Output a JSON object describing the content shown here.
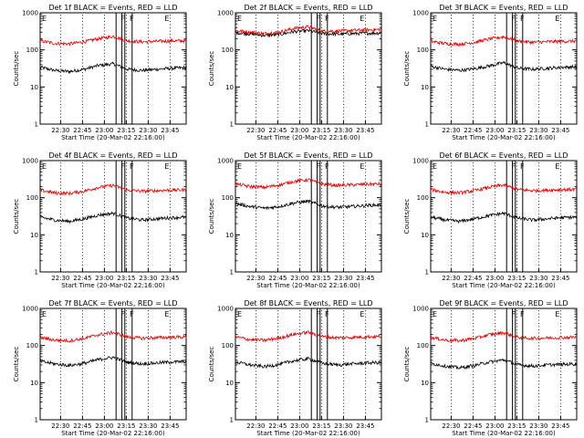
{
  "figure": {
    "panel_x_ticks": [
      "22:30",
      "22:45",
      "23:00",
      "23:15",
      "23:30",
      "23:45"
    ],
    "panel_y_ticks": [
      "1",
      "10",
      "100",
      "1000"
    ]
  },
  "chart_data": [
    {
      "type": "line",
      "title": "Det 1f BLACK = Events, RED = LLD",
      "xlabel": "Start Time (20-Mar-02 22:16:00)",
      "ylabel": "Counts/sec",
      "y_scale": "log",
      "ylim": [
        1,
        1000
      ],
      "xlim": [
        "22:16",
        "23:56"
      ],
      "flags": [
        {
          "label": "E",
          "time": "22:16"
        },
        {
          "label": "F",
          "time": "23:10"
        },
        {
          "label": "F",
          "time": "23:16"
        },
        {
          "label": "E",
          "time": "23:40"
        }
      ],
      "vertical_lines": [
        "23:08",
        "23:12",
        "23:14",
        "23:19"
      ],
      "x": [
        "22:16",
        "22:26",
        "22:36",
        "22:46",
        "22:56",
        "23:06",
        "23:16",
        "23:26",
        "23:36",
        "23:46",
        "23:56"
      ],
      "series": [
        {
          "color": "#000000",
          "values": [
            34,
            28,
            26,
            30,
            38,
            42,
            30,
            28,
            30,
            32,
            33
          ]
        },
        {
          "color": "#e00000",
          "values": [
            175,
            150,
            145,
            165,
            200,
            230,
            175,
            165,
            170,
            175,
            175
          ]
        }
      ]
    },
    {
      "type": "line",
      "title": "Det 2f BLACK = Events, RED = LLD",
      "xlabel": "Start Time (20-Mar-02 22:16:00)",
      "ylabel": "Counts/sec",
      "y_scale": "log",
      "ylim": [
        1,
        1000
      ],
      "xlim": [
        "22:16",
        "23:56"
      ],
      "flags": [
        {
          "label": "E",
          "time": "22:16"
        },
        {
          "label": "F",
          "time": "23:10"
        },
        {
          "label": "F",
          "time": "23:16"
        },
        {
          "label": "E",
          "time": "23:40"
        }
      ],
      "vertical_lines": [
        "23:08",
        "23:12",
        "23:14",
        "23:19"
      ],
      "x": [
        "22:16",
        "22:26",
        "22:36",
        "22:46",
        "22:56",
        "23:06",
        "23:16",
        "23:26",
        "23:36",
        "23:46",
        "23:56"
      ],
      "series": [
        {
          "color": "#000000",
          "values": [
            290,
            270,
            245,
            260,
            310,
            330,
            275,
            265,
            275,
            280,
            285
          ]
        },
        {
          "color": "#e00000",
          "values": [
            330,
            300,
            275,
            300,
            380,
            420,
            320,
            320,
            335,
            345,
            355
          ]
        }
      ]
    },
    {
      "type": "line",
      "title": "Det 3f BLACK = Events, RED = LLD",
      "xlabel": "Start Time (20-Mar-02 22:16:00)",
      "ylabel": "Counts/sec",
      "y_scale": "log",
      "ylim": [
        1,
        1000
      ],
      "xlim": [
        "22:16",
        "23:56"
      ],
      "flags": [
        {
          "label": "E",
          "time": "22:16"
        },
        {
          "label": "F",
          "time": "23:10"
        },
        {
          "label": "F",
          "time": "23:16"
        },
        {
          "label": "E",
          "time": "23:40"
        }
      ],
      "vertical_lines": [
        "23:08",
        "23:12",
        "23:14",
        "23:19"
      ],
      "x": [
        "22:16",
        "22:26",
        "22:36",
        "22:46",
        "22:56",
        "23:06",
        "23:16",
        "23:26",
        "23:36",
        "23:46",
        "23:56"
      ],
      "series": [
        {
          "color": "#000000",
          "values": [
            36,
            30,
            28,
            31,
            37,
            45,
            32,
            30,
            32,
            34,
            35
          ]
        },
        {
          "color": "#e00000",
          "values": [
            170,
            148,
            142,
            160,
            195,
            225,
            172,
            160,
            165,
            170,
            172
          ]
        }
      ]
    },
    {
      "type": "line",
      "title": "Det 4f BLACK = Events, RED = LLD",
      "xlabel": "Start Time (20-Mar-02 22:16:00)",
      "ylabel": "Counts/sec",
      "y_scale": "log",
      "ylim": [
        1,
        1000
      ],
      "xlim": [
        "22:16",
        "23:56"
      ],
      "flags": [
        {
          "label": "E",
          "time": "22:16"
        },
        {
          "label": "F",
          "time": "23:10"
        },
        {
          "label": "F",
          "time": "23:16"
        },
        {
          "label": "E",
          "time": "23:40"
        }
      ],
      "vertical_lines": [
        "23:08",
        "23:12",
        "23:14",
        "23:19"
      ],
      "x": [
        "22:16",
        "22:26",
        "22:36",
        "22:46",
        "22:56",
        "23:06",
        "23:16",
        "23:26",
        "23:36",
        "23:46",
        "23:56"
      ],
      "series": [
        {
          "color": "#000000",
          "values": [
            30,
            25,
            23,
            27,
            34,
            38,
            28,
            25,
            27,
            29,
            30
          ]
        },
        {
          "color": "#e00000",
          "values": [
            160,
            135,
            130,
            150,
            190,
            215,
            160,
            150,
            155,
            160,
            162
          ]
        }
      ]
    },
    {
      "type": "line",
      "title": "Det 5f BLACK = Events, RED = LLD",
      "xlabel": "Start Time (20-Mar-02 22:16:00)",
      "ylabel": "Counts/sec",
      "y_scale": "log",
      "ylim": [
        1,
        1000
      ],
      "xlim": [
        "22:16",
        "23:56"
      ],
      "flags": [
        {
          "label": "E",
          "time": "22:16"
        },
        {
          "label": "F",
          "time": "23:10"
        },
        {
          "label": "F",
          "time": "23:16"
        },
        {
          "label": "E",
          "time": "23:40"
        }
      ],
      "vertical_lines": [
        "23:08",
        "23:12",
        "23:14",
        "23:19"
      ],
      "x": [
        "22:16",
        "22:26",
        "22:36",
        "22:46",
        "22:56",
        "23:06",
        "23:16",
        "23:26",
        "23:36",
        "23:46",
        "23:56"
      ],
      "series": [
        {
          "color": "#000000",
          "values": [
            70,
            58,
            52,
            58,
            72,
            80,
            60,
            55,
            58,
            62,
            64
          ]
        },
        {
          "color": "#e00000",
          "values": [
            235,
            200,
            190,
            220,
            275,
            305,
            230,
            215,
            222,
            230,
            235
          ]
        }
      ]
    },
    {
      "type": "line",
      "title": "Det 6f BLACK = Events, RED = LLD",
      "xlabel": "Start Time (20-Mar-02 22:16:00)",
      "ylabel": "Counts/sec",
      "y_scale": "log",
      "ylim": [
        1,
        1000
      ],
      "xlim": [
        "22:16",
        "23:56"
      ],
      "flags": [
        {
          "label": "E",
          "time": "22:16"
        },
        {
          "label": "F",
          "time": "23:10"
        },
        {
          "label": "F",
          "time": "23:16"
        },
        {
          "label": "E",
          "time": "23:40"
        }
      ],
      "vertical_lines": [
        "23:08",
        "23:12",
        "23:14",
        "23:19"
      ],
      "x": [
        "22:16",
        "22:26",
        "22:36",
        "22:46",
        "22:56",
        "23:06",
        "23:16",
        "23:26",
        "23:36",
        "23:46",
        "23:56"
      ],
      "series": [
        {
          "color": "#000000",
          "values": [
            30,
            25,
            23,
            27,
            33,
            38,
            28,
            25,
            27,
            29,
            30
          ]
        },
        {
          "color": "#e00000",
          "values": [
            165,
            140,
            135,
            155,
            190,
            220,
            165,
            155,
            160,
            165,
            168
          ]
        }
      ]
    },
    {
      "type": "line",
      "title": "Det 7f BLACK = Events, RED = LLD",
      "xlabel": "Start Time (20-Mar-02 22:16:00)",
      "ylabel": "Counts/sec",
      "y_scale": "log",
      "ylim": [
        1,
        1000
      ],
      "xlim": [
        "22:16",
        "23:56"
      ],
      "flags": [
        {
          "label": "E",
          "time": "22:16"
        },
        {
          "label": "F",
          "time": "23:10"
        },
        {
          "label": "F",
          "time": "23:16"
        },
        {
          "label": "E",
          "time": "23:40"
        }
      ],
      "vertical_lines": [
        "23:08",
        "23:12",
        "23:14",
        "23:19"
      ],
      "x": [
        "22:16",
        "22:26",
        "22:36",
        "22:46",
        "22:56",
        "23:06",
        "23:16",
        "23:26",
        "23:36",
        "23:46",
        "23:56"
      ],
      "series": [
        {
          "color": "#000000",
          "values": [
            38,
            32,
            29,
            33,
            42,
            48,
            35,
            32,
            34,
            36,
            37
          ]
        },
        {
          "color": "#e00000",
          "values": [
            165,
            140,
            135,
            155,
            195,
            225,
            168,
            158,
            162,
            168,
            170
          ]
        }
      ]
    },
    {
      "type": "line",
      "title": "Det 8f BLACK = Events, RED = LLD",
      "xlabel": "Start Time (20-Mar-02 22:16:00)",
      "ylabel": "Counts/sec",
      "y_scale": "log",
      "ylim": [
        1,
        1000
      ],
      "xlim": [
        "22:16",
        "23:56"
      ],
      "flags": [
        {
          "label": "E",
          "time": "22:16"
        },
        {
          "label": "F",
          "time": "23:10"
        },
        {
          "label": "F",
          "time": "23:16"
        },
        {
          "label": "E",
          "time": "23:40"
        }
      ],
      "vertical_lines": [
        "23:08",
        "23:12",
        "23:14",
        "23:19"
      ],
      "x": [
        "22:16",
        "22:26",
        "22:36",
        "22:46",
        "22:56",
        "23:06",
        "23:16",
        "23:26",
        "23:36",
        "23:46",
        "23:56"
      ],
      "series": [
        {
          "color": "#000000",
          "values": [
            36,
            30,
            27,
            31,
            39,
            44,
            33,
            30,
            32,
            34,
            35
          ]
        },
        {
          "color": "#e00000",
          "values": [
            170,
            145,
            138,
            160,
            200,
            230,
            172,
            162,
            166,
            172,
            175
          ]
        }
      ]
    },
    {
      "type": "line",
      "title": "Det 9f BLACK = Events, RED = LLD",
      "xlabel": "Start Time (20-Mar-02 22:16:00)",
      "ylabel": "Counts/sec",
      "y_scale": "log",
      "ylim": [
        1,
        1000
      ],
      "xlim": [
        "22:16",
        "23:56"
      ],
      "flags": [
        {
          "label": "E",
          "time": "22:16"
        },
        {
          "label": "F",
          "time": "23:10"
        },
        {
          "label": "F",
          "time": "23:16"
        },
        {
          "label": "E",
          "time": "23:40"
        }
      ],
      "vertical_lines": [
        "23:08",
        "23:12",
        "23:14",
        "23:19"
      ],
      "x": [
        "22:16",
        "22:26",
        "22:36",
        "22:46",
        "22:56",
        "23:06",
        "23:16",
        "23:26",
        "23:36",
        "23:46",
        "23:56"
      ],
      "series": [
        {
          "color": "#000000",
          "values": [
            33,
            28,
            25,
            29,
            36,
            41,
            30,
            28,
            30,
            31,
            32
          ]
        },
        {
          "color": "#e00000",
          "values": [
            165,
            140,
            135,
            155,
            195,
            222,
            166,
            155,
            160,
            165,
            168
          ]
        }
      ]
    }
  ]
}
